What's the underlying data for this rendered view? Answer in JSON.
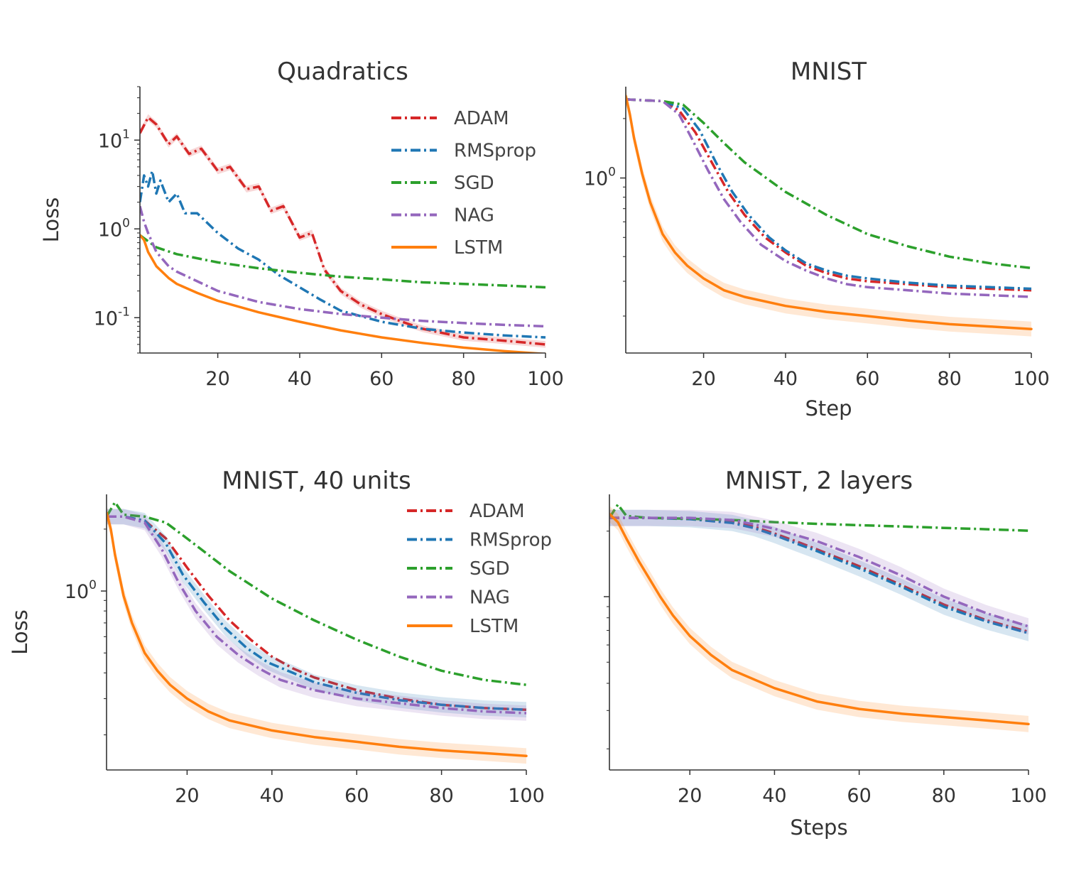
{
  "chart_data": [
    {
      "type": "line",
      "title": "Quadratics",
      "xlabel": "",
      "ylabel": "Loss",
      "yscale": "log",
      "xlim": [
        1,
        100
      ],
      "ylim": [
        0.04,
        40
      ],
      "xticks": [
        {
          "v": 20,
          "label": "20"
        },
        {
          "v": 40,
          "label": "40"
        },
        {
          "v": 60,
          "label": "60"
        },
        {
          "v": 80,
          "label": "80"
        },
        {
          "v": 100,
          "label": "100"
        }
      ],
      "yticks": [
        {
          "v": 10,
          "base": "10",
          "exp": "1"
        },
        {
          "v": 1,
          "base": "10",
          "exp": "0"
        },
        {
          "v": 0.1,
          "base": "10",
          "exp": "-1"
        }
      ],
      "grid": false,
      "legend": {
        "position": "top-right",
        "entries": [
          "ADAM",
          "RMSprop",
          "SGD",
          "NAG",
          "LSTM"
        ]
      },
      "series": [
        {
          "name": "ADAM",
          "color": "#d62728",
          "style": "dashed",
          "band": true,
          "x": [
            1,
            3,
            5,
            8,
            10,
            13,
            16,
            20,
            23,
            27,
            30,
            33,
            36,
            40,
            43,
            46,
            50,
            55,
            60,
            65,
            70,
            80,
            90,
            100
          ],
          "y": [
            12,
            18,
            15,
            9,
            11,
            7,
            8,
            4.5,
            5,
            2.8,
            3,
            1.6,
            1.8,
            0.8,
            0.9,
            0.35,
            0.2,
            0.14,
            0.11,
            0.09,
            0.075,
            0.06,
            0.055,
            0.05
          ]
        },
        {
          "name": "RMSprop",
          "color": "#1f77b4",
          "style": "dashed",
          "band": false,
          "x": [
            1,
            2,
            3,
            4,
            5,
            6,
            8,
            10,
            12,
            15,
            20,
            25,
            30,
            35,
            40,
            45,
            50,
            60,
            70,
            80,
            90,
            100
          ],
          "y": [
            2,
            4,
            3,
            4.5,
            2.5,
            3.5,
            2,
            2.5,
            1.5,
            1.5,
            0.9,
            0.6,
            0.45,
            0.3,
            0.22,
            0.16,
            0.12,
            0.09,
            0.075,
            0.068,
            0.063,
            0.06
          ]
        },
        {
          "name": "SGD",
          "color": "#2ca02c",
          "style": "dashed",
          "band": false,
          "x": [
            1,
            5,
            10,
            20,
            30,
            40,
            50,
            60,
            70,
            80,
            90,
            100
          ],
          "y": [
            0.85,
            0.62,
            0.52,
            0.42,
            0.36,
            0.32,
            0.29,
            0.27,
            0.25,
            0.24,
            0.23,
            0.22
          ]
        },
        {
          "name": "NAG",
          "color": "#9467bd",
          "style": "dashed",
          "band": false,
          "x": [
            1,
            2,
            3,
            5,
            8,
            10,
            20,
            30,
            40,
            50,
            60,
            70,
            80,
            90,
            100
          ],
          "y": [
            1.8,
            1.2,
            0.9,
            0.55,
            0.38,
            0.33,
            0.2,
            0.15,
            0.125,
            0.11,
            0.1,
            0.092,
            0.087,
            0.083,
            0.08
          ]
        },
        {
          "name": "LSTM",
          "color": "#ff7f0e",
          "style": "solid",
          "band": false,
          "x": [
            1,
            2,
            3,
            5,
            8,
            10,
            15,
            20,
            30,
            40,
            50,
            60,
            70,
            80,
            90,
            100
          ],
          "y": [
            0.85,
            0.75,
            0.55,
            0.38,
            0.28,
            0.24,
            0.19,
            0.155,
            0.115,
            0.09,
            0.072,
            0.06,
            0.052,
            0.046,
            0.042,
            0.039
          ]
        }
      ]
    },
    {
      "type": "line",
      "title": "MNIST",
      "xlabel": "Step",
      "ylabel": "",
      "yscale": "log",
      "xlim": [
        1,
        100
      ],
      "ylim": [
        0.13,
        2.9
      ],
      "xticks": [
        {
          "v": 20,
          "label": "20"
        },
        {
          "v": 40,
          "label": "40"
        },
        {
          "v": 60,
          "label": "60"
        },
        {
          "v": 80,
          "label": "80"
        },
        {
          "v": 100,
          "label": "100"
        }
      ],
      "yticks": [
        {
          "v": 1,
          "base": "10",
          "exp": "0"
        }
      ],
      "grid": false,
      "legend": null,
      "series": [
        {
          "name": "ADAM",
          "color": "#d62728",
          "style": "dashed",
          "band": false,
          "x": [
            1,
            10,
            14,
            18,
            22,
            26,
            30,
            35,
            40,
            45,
            50,
            55,
            60,
            70,
            80,
            90,
            100
          ],
          "y": [
            2.5,
            2.45,
            2.2,
            1.7,
            1.2,
            0.85,
            0.65,
            0.5,
            0.42,
            0.36,
            0.33,
            0.31,
            0.3,
            0.29,
            0.28,
            0.275,
            0.27
          ]
        },
        {
          "name": "RMSprop",
          "color": "#1f77b4",
          "style": "dashed",
          "band": false,
          "x": [
            1,
            10,
            15,
            19,
            23,
            27,
            31,
            36,
            40,
            45,
            50,
            55,
            60,
            70,
            80,
            90,
            100
          ],
          "y": [
            2.5,
            2.45,
            2.25,
            1.75,
            1.2,
            0.85,
            0.65,
            0.5,
            0.43,
            0.37,
            0.34,
            0.32,
            0.31,
            0.295,
            0.285,
            0.28,
            0.275
          ]
        },
        {
          "name": "SGD",
          "color": "#2ca02c",
          "style": "dashed",
          "band": false,
          "x": [
            1,
            10,
            15,
            20,
            25,
            30,
            40,
            50,
            60,
            70,
            80,
            90,
            100
          ],
          "y": [
            2.5,
            2.45,
            2.35,
            1.9,
            1.5,
            1.2,
            0.85,
            0.65,
            0.52,
            0.45,
            0.4,
            0.37,
            0.35
          ]
        },
        {
          "name": "NAG",
          "color": "#9467bd",
          "style": "dashed",
          "band": false,
          "x": [
            1,
            10,
            14,
            17,
            21,
            25,
            29,
            34,
            40,
            45,
            50,
            55,
            60,
            70,
            80,
            90,
            100
          ],
          "y": [
            2.5,
            2.45,
            2.1,
            1.6,
            1.1,
            0.78,
            0.6,
            0.46,
            0.38,
            0.34,
            0.31,
            0.29,
            0.28,
            0.27,
            0.26,
            0.255,
            0.25
          ]
        },
        {
          "name": "LSTM",
          "color": "#ff7f0e",
          "style": "solid",
          "band": true,
          "x": [
            1,
            2,
            3,
            5,
            7,
            10,
            13,
            16,
            20,
            25,
            30,
            40,
            50,
            60,
            70,
            80,
            90,
            100
          ],
          "y": [
            2.6,
            2.1,
            1.6,
            1.05,
            0.75,
            0.52,
            0.42,
            0.36,
            0.31,
            0.27,
            0.25,
            0.225,
            0.21,
            0.2,
            0.19,
            0.182,
            0.177,
            0.172
          ]
        }
      ]
    },
    {
      "type": "line",
      "title": "MNIST, 40 units",
      "xlabel": "",
      "ylabel": "Loss",
      "yscale": "log",
      "xlim": [
        1,
        100
      ],
      "ylim": [
        0.135,
        2.95
      ],
      "xticks": [
        {
          "v": 20,
          "label": "20"
        },
        {
          "v": 40,
          "label": "40"
        },
        {
          "v": 60,
          "label": "60"
        },
        {
          "v": 80,
          "label": "80"
        },
        {
          "v": 100,
          "label": "100"
        }
      ],
      "yticks": [
        {
          "v": 1,
          "base": "10",
          "exp": "0"
        }
      ],
      "grid": false,
      "legend": {
        "position": "top-right",
        "entries": [
          "ADAM",
          "RMSprop",
          "SGD",
          "NAG",
          "LSTM"
        ]
      },
      "series": [
        {
          "name": "ADAM",
          "color": "#d62728",
          "style": "dashed",
          "band": false,
          "x": [
            1,
            5,
            10,
            15,
            20,
            25,
            30,
            35,
            40,
            45,
            50,
            60,
            70,
            80,
            90,
            100
          ],
          "y": [
            2.3,
            2.3,
            2.2,
            1.8,
            1.3,
            0.95,
            0.72,
            0.58,
            0.48,
            0.42,
            0.38,
            0.33,
            0.3,
            0.28,
            0.27,
            0.265
          ]
        },
        {
          "name": "RMSprop",
          "color": "#1f77b4",
          "style": "dashed",
          "band": true,
          "x": [
            1,
            5,
            10,
            15,
            19,
            24,
            29,
            34,
            39,
            45,
            50,
            60,
            70,
            80,
            90,
            100
          ],
          "y": [
            2.3,
            2.3,
            2.2,
            1.7,
            1.2,
            0.88,
            0.66,
            0.53,
            0.45,
            0.4,
            0.36,
            0.32,
            0.295,
            0.28,
            0.27,
            0.265
          ]
        },
        {
          "name": "SGD",
          "color": "#2ca02c",
          "style": "dashed",
          "band": false,
          "x": [
            1,
            3,
            5,
            10,
            15,
            20,
            25,
            30,
            40,
            50,
            60,
            70,
            80,
            90,
            100
          ],
          "y": [
            2.3,
            2.7,
            2.35,
            2.3,
            2.15,
            1.8,
            1.5,
            1.25,
            0.92,
            0.72,
            0.58,
            0.48,
            0.41,
            0.37,
            0.35
          ]
        },
        {
          "name": "NAG",
          "color": "#9467bd",
          "style": "dashed",
          "band": true,
          "x": [
            1,
            5,
            10,
            14,
            18,
            22,
            27,
            32,
            37,
            42,
            50,
            60,
            70,
            80,
            90,
            100
          ],
          "y": [
            2.3,
            2.3,
            2.15,
            1.6,
            1.1,
            0.8,
            0.6,
            0.49,
            0.42,
            0.37,
            0.33,
            0.3,
            0.285,
            0.27,
            0.26,
            0.255
          ]
        },
        {
          "name": "LSTM",
          "color": "#ff7f0e",
          "style": "solid",
          "band": true,
          "x": [
            1,
            2,
            3,
            5,
            7,
            10,
            13,
            16,
            20,
            25,
            30,
            40,
            50,
            60,
            70,
            80,
            90,
            100
          ],
          "y": [
            2.4,
            2.0,
            1.5,
            0.95,
            0.7,
            0.5,
            0.41,
            0.35,
            0.3,
            0.26,
            0.235,
            0.21,
            0.195,
            0.185,
            0.175,
            0.168,
            0.163,
            0.158
          ]
        }
      ]
    },
    {
      "type": "line",
      "title": "MNIST, 2 layers",
      "xlabel": "Steps",
      "ylabel": "",
      "yscale": "log",
      "xlim": [
        1,
        100
      ],
      "ylim": [
        0.16,
        2.95
      ],
      "xticks": [
        {
          "v": 20,
          "label": "20"
        },
        {
          "v": 40,
          "label": "40"
        },
        {
          "v": 60,
          "label": "60"
        },
        {
          "v": 80,
          "label": "80"
        },
        {
          "v": 100,
          "label": "100"
        }
      ],
      "yticks": [
        {
          "v": 1,
          "base": "",
          "exp": ""
        }
      ],
      "grid": false,
      "legend": null,
      "series": [
        {
          "name": "ADAM",
          "color": "#d62728",
          "style": "dashed",
          "band": false,
          "x": [
            1,
            10,
            20,
            30,
            35,
            40,
            45,
            50,
            60,
            70,
            80,
            90,
            100
          ],
          "y": [
            2.3,
            2.3,
            2.28,
            2.2,
            2.1,
            1.95,
            1.8,
            1.65,
            1.38,
            1.13,
            0.92,
            0.78,
            0.69
          ]
        },
        {
          "name": "RMSprop",
          "color": "#1f77b4",
          "style": "dashed",
          "band": true,
          "x": [
            1,
            10,
            20,
            30,
            35,
            40,
            45,
            50,
            60,
            70,
            80,
            90,
            100
          ],
          "y": [
            2.3,
            2.3,
            2.27,
            2.18,
            2.07,
            1.92,
            1.76,
            1.62,
            1.35,
            1.11,
            0.9,
            0.77,
            0.68
          ]
        },
        {
          "name": "SGD",
          "color": "#2ca02c",
          "style": "dashed",
          "band": false,
          "x": [
            1,
            3,
            5,
            10,
            20,
            30,
            40,
            50,
            60,
            70,
            80,
            90,
            100
          ],
          "y": [
            2.3,
            2.65,
            2.35,
            2.3,
            2.28,
            2.25,
            2.2,
            2.16,
            2.13,
            2.1,
            2.07,
            2.04,
            2.01
          ]
        },
        {
          "name": "NAG",
          "color": "#9467bd",
          "style": "dashed",
          "band": true,
          "x": [
            1,
            10,
            20,
            30,
            35,
            40,
            45,
            50,
            60,
            70,
            80,
            90,
            100
          ],
          "y": [
            2.3,
            2.3,
            2.3,
            2.25,
            2.15,
            2.05,
            1.92,
            1.8,
            1.52,
            1.25,
            1.0,
            0.84,
            0.73
          ]
        },
        {
          "name": "LSTM",
          "color": "#ff7f0e",
          "style": "solid",
          "band": true,
          "x": [
            1,
            3,
            5,
            8,
            10,
            13,
            16,
            20,
            25,
            30,
            40,
            50,
            60,
            70,
            80,
            90,
            100
          ],
          "y": [
            2.4,
            2.2,
            1.85,
            1.45,
            1.25,
            1.0,
            0.82,
            0.66,
            0.54,
            0.46,
            0.38,
            0.33,
            0.305,
            0.29,
            0.28,
            0.27,
            0.26
          ]
        }
      ]
    }
  ]
}
